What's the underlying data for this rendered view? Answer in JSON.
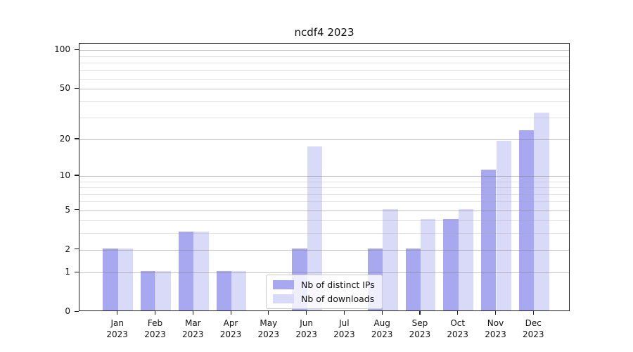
{
  "chart_data": {
    "type": "bar",
    "title": "ncdf4 2023",
    "categories": [
      "Jan",
      "Feb",
      "Mar",
      "Apr",
      "May",
      "Jun",
      "Jul",
      "Aug",
      "Sep",
      "Oct",
      "Nov",
      "Dec"
    ],
    "year_label": "2023",
    "series": [
      {
        "name": "Nb of distinct IPs",
        "color": "#a8a8f0",
        "values": [
          2,
          1,
          3,
          1,
          0,
          2,
          0,
          2,
          2,
          4,
          11,
          23
        ]
      },
      {
        "name": "Nb of downloads",
        "color": "#d9d9f8",
        "values": [
          2,
          1,
          3,
          1,
          0,
          17,
          0,
          5,
          4,
          5,
          19,
          32
        ]
      }
    ],
    "y_axis": {
      "scale": "log1p",
      "major_ticks": [
        100,
        50,
        20,
        10,
        5,
        2,
        1,
        0
      ],
      "minor_gridlines": [
        3,
        4,
        6,
        7,
        8,
        9,
        30,
        40,
        60,
        70,
        80,
        90
      ],
      "range_max": 113
    },
    "grid": "both",
    "legend": {
      "position": "lower-center"
    }
  },
  "colors": {
    "grid_major": "#c8c8c8",
    "grid_minor": "#e3e3e3",
    "axis": "#1c1c1c",
    "background": "#ffffff"
  }
}
